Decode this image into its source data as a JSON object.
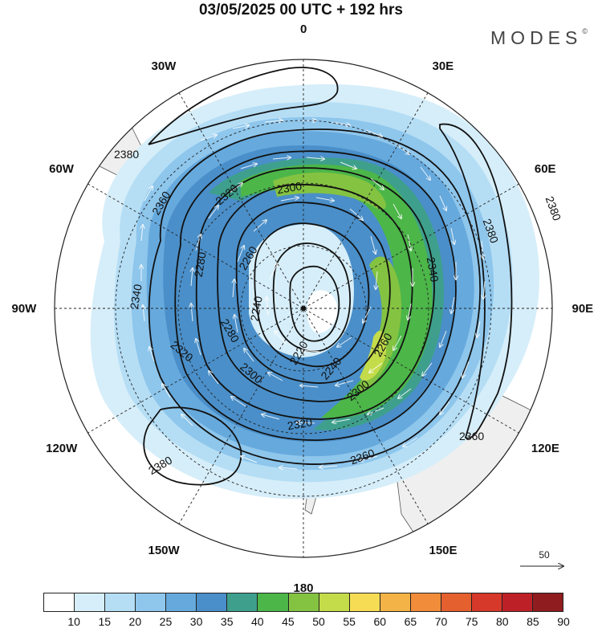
{
  "title": "03/05/2025  00 UTC  + 192 hrs",
  "brand": "MODES",
  "brand_mark": "©",
  "longitude_labels": [
    {
      "text": "0",
      "lon": 0
    },
    {
      "text": "30E",
      "lon": 30
    },
    {
      "text": "60E",
      "lon": 60
    },
    {
      "text": "90E",
      "lon": 90
    },
    {
      "text": "120E",
      "lon": 120
    },
    {
      "text": "150E",
      "lon": 150
    },
    {
      "text": "180",
      "lon": 180
    },
    {
      "text": "150W",
      "lon": -150
    },
    {
      "text": "120W",
      "lon": -120
    },
    {
      "text": "90W",
      "lon": -90
    },
    {
      "text": "60W",
      "lon": -60
    },
    {
      "text": "30W",
      "lon": -30
    }
  ],
  "contour_labels": [
    "2380",
    "2360",
    "2340",
    "2320",
    "2300",
    "2280",
    "2260",
    "2240",
    "2220",
    "2300",
    "2320",
    "2340",
    "2360",
    "2380",
    "2380",
    "2380",
    "2280",
    "2260",
    "2300",
    "2240",
    "2360",
    "2320"
  ],
  "reference_vector": {
    "value": "50"
  },
  "colorbar": {
    "labels": [
      "10",
      "15",
      "20",
      "25",
      "30",
      "35",
      "40",
      "45",
      "50",
      "55",
      "60",
      "65",
      "70",
      "75",
      "80",
      "85",
      "90"
    ],
    "colors": [
      "#ffffff",
      "#d6eef9",
      "#b5def5",
      "#8ec6ec",
      "#66a9dd",
      "#4a8fc9",
      "#3ea08c",
      "#4cb649",
      "#84c341",
      "#c5dc4a",
      "#f6dc55",
      "#f4b347",
      "#f08c3a",
      "#e4602f",
      "#d6382a",
      "#bd2127",
      "#8f1c1e"
    ]
  }
}
